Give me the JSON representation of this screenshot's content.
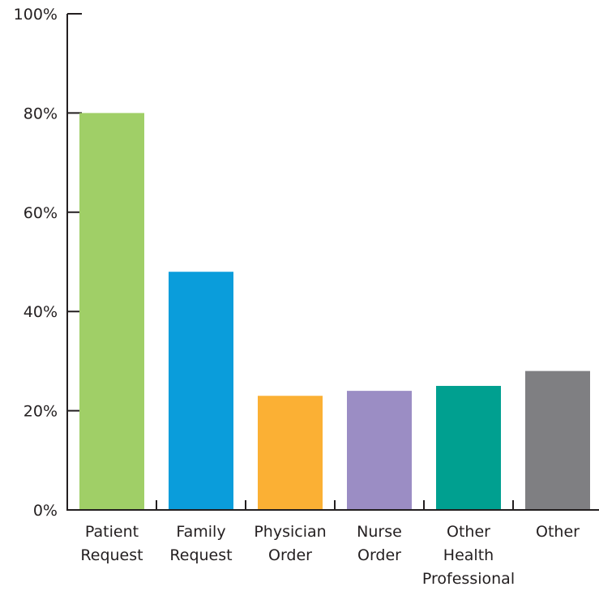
{
  "chart_data": {
    "type": "bar",
    "categories": [
      [
        "Patient",
        "Request"
      ],
      [
        "Family",
        "Request"
      ],
      [
        "Physician",
        "Order"
      ],
      [
        "Nurse",
        "Order"
      ],
      [
        "Other",
        "Health",
        "Professional"
      ],
      [
        "Other"
      ]
    ],
    "values": [
      80,
      48,
      23,
      24,
      25,
      28
    ],
    "colors": [
      "#a0cf67",
      "#0a9ddb",
      "#fbb034",
      "#9b8dc4",
      "#00a090",
      "#7f7f82"
    ],
    "ylim": [
      0,
      100
    ],
    "yticks": [
      0,
      20,
      40,
      60,
      80,
      100
    ],
    "ytick_format": "{v}%",
    "title": "",
    "xlabel": "",
    "ylabel": "",
    "grid": false,
    "legend": false
  }
}
